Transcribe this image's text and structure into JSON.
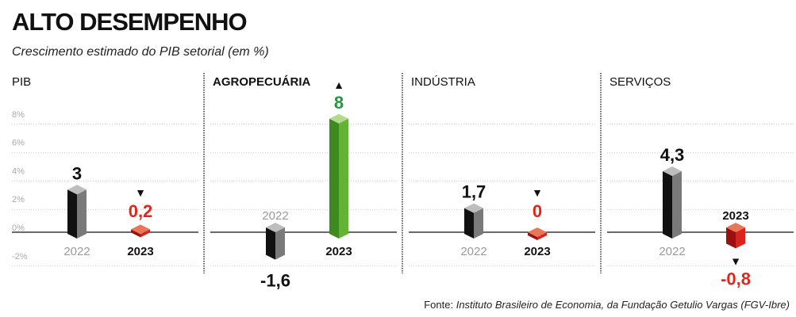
{
  "chart_data": {
    "type": "bar",
    "title": "ALTO DESEMPENHO",
    "subtitle": "Crescimento estimado do PIB setorial (em %)",
    "ylim": [
      -2,
      8
    ],
    "yticks": [
      8,
      6,
      4,
      2,
      0,
      -2
    ],
    "ytick_labels": [
      "8%",
      "6%",
      "4%",
      "2%",
      "0%",
      "-2%"
    ],
    "grid": true,
    "categories": [
      "2022",
      "2023"
    ],
    "panels": [
      {
        "name": "PIB",
        "bold": false,
        "bars": [
          {
            "year": "2022",
            "value": 3,
            "label": "3",
            "style": "gray",
            "arrow": null
          },
          {
            "year": "2023",
            "value": 0.2,
            "label": "0,2",
            "style": "red",
            "arrow": "down"
          }
        ]
      },
      {
        "name": "AGROPECUÁRIA",
        "bold": true,
        "bars": [
          {
            "year": "2022",
            "value": -1.6,
            "label": "-1,6",
            "style": "gray",
            "arrow": null
          },
          {
            "year": "2023",
            "value": 8,
            "label": "8",
            "style": "green",
            "arrow": "up"
          }
        ]
      },
      {
        "name": "INDÚSTRIA",
        "bold": false,
        "bars": [
          {
            "year": "2022",
            "value": 1.7,
            "label": "1,7",
            "style": "gray",
            "arrow": null
          },
          {
            "year": "2023",
            "value": 0,
            "label": "0",
            "style": "red",
            "arrow": "down"
          }
        ]
      },
      {
        "name": "SERVIÇOS",
        "bold": false,
        "bars": [
          {
            "year": "2022",
            "value": 4.3,
            "label": "4,3",
            "style": "gray",
            "arrow": null
          },
          {
            "year": "2023",
            "value": -0.8,
            "label": "-0,8",
            "style": "red",
            "arrow": "down"
          }
        ]
      }
    ],
    "source_prefix": "Fonte: ",
    "source": "Instituto Brasileiro de Economia, da Fundação Getulio Vargas (FGV-Ibre)"
  },
  "colors": {
    "gray": {
      "left": "#111111",
      "right": "#7a7a7a",
      "top": "#bdbdbd",
      "text": "#111111"
    },
    "green": {
      "left": "#3d8a1f",
      "right": "#63b434",
      "top": "#b6da8c",
      "text": "#1e9a3c"
    },
    "red": {
      "left": "#9c0f0f",
      "right": "#d8241c",
      "top": "#e8775a",
      "text": "#e3261c"
    },
    "year_past": "#9a9a9a",
    "year_current": "#111111"
  }
}
